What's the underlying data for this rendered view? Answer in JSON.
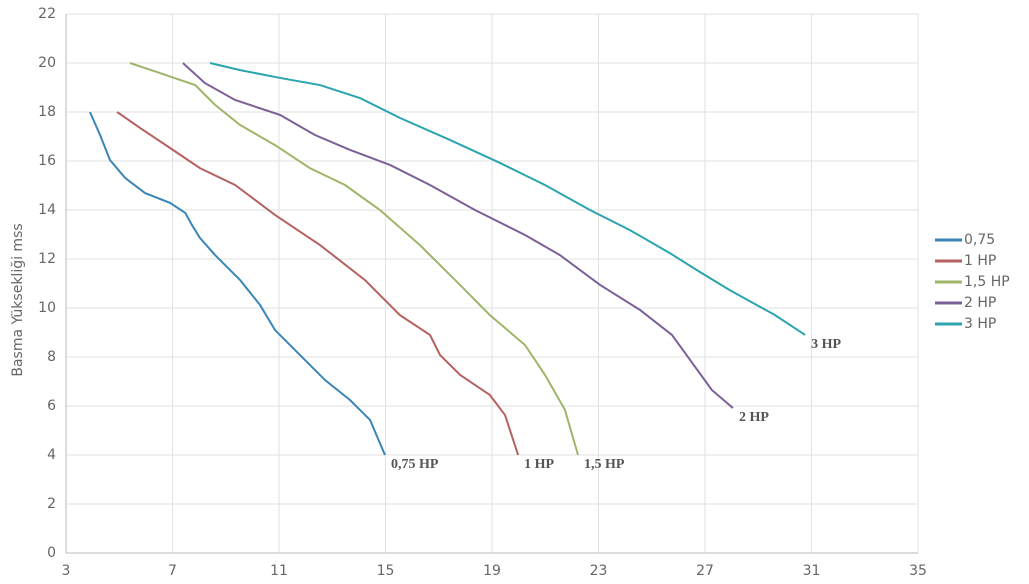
{
  "chart_data": {
    "type": "line",
    "y_label": "Basma Yüksekliği mss",
    "xlim": [
      3,
      35
    ],
    "xticks": [
      3,
      7,
      11,
      15,
      19,
      23,
      27,
      31,
      35
    ],
    "ylim": [
      0,
      22
    ],
    "yticks": [
      0,
      2,
      4,
      6,
      8,
      10,
      12,
      14,
      16,
      18,
      20,
      22
    ],
    "grid": true,
    "legend": "right",
    "series": [
      {
        "name": "0,75",
        "label": "0,75 HP",
        "color": "#3a86b6",
        "x": [
          3.9,
          4.28,
          4.65,
          5.22,
          5.97,
          6.91,
          7.48,
          7.73,
          8.03,
          8.6,
          9.54,
          10.29,
          10.85,
          11.79,
          12.73,
          13.67,
          14.42,
          14.98
        ],
        "values": [
          18,
          17.06,
          16.04,
          15.31,
          14.69,
          14.29,
          13.88,
          13.39,
          12.86,
          12.16,
          11.14,
          10.12,
          9.1,
          8.08,
          7.06,
          6.24,
          5.43,
          4
        ]
      },
      {
        "name": "1 HP",
        "label": "1 HP",
        "color": "#b5615f",
        "x": [
          4.92,
          5.78,
          6.91,
          8.03,
          9.35,
          10.85,
          12.54,
          14.23,
          15.54,
          16.67,
          17.05,
          17.8,
          18.92,
          19.49,
          19.98
        ],
        "values": [
          18,
          17.35,
          16.53,
          15.71,
          15.02,
          13.8,
          12.57,
          11.14,
          9.71,
          8.9,
          8.08,
          7.27,
          6.45,
          5.63,
          4
        ]
      },
      {
        "name": "1,5 HP",
        "label": "1,5 HP",
        "color": "#9eb56a",
        "x": [
          5.4,
          6.53,
          7.85,
          8.6,
          9.54,
          10.85,
          12.16,
          13.48,
          14.79,
          16.29,
          17.8,
          18.92,
          20.24,
          20.99,
          21.74,
          22.23
        ],
        "values": [
          20,
          19.59,
          19.1,
          18.29,
          17.47,
          16.65,
          15.71,
          15.02,
          14,
          12.57,
          10.94,
          9.71,
          8.49,
          7.27,
          5.84,
          4
        ]
      },
      {
        "name": "2 HP",
        "label": "2 HP",
        "color": "#7a6096",
        "x": [
          7.39,
          8.22,
          9.35,
          11.04,
          12.35,
          13.67,
          15.17,
          16.67,
          18.36,
          20.24,
          21.55,
          23.06,
          24.56,
          25.76,
          26.44,
          27.26,
          28.05
        ],
        "values": [
          20,
          19.18,
          18.49,
          17.88,
          17.06,
          16.45,
          15.84,
          15.02,
          14,
          12.98,
          12.16,
          10.94,
          9.92,
          8.9,
          7.88,
          6.65,
          5.92
        ]
      },
      {
        "name": "3 HP",
        "label": "3 HP",
        "color": "#2aa5b0",
        "x": [
          8.41,
          9.54,
          11.04,
          12.54,
          14.04,
          15.54,
          17.42,
          19.3,
          20.99,
          22.68,
          24.18,
          25.68,
          26.81,
          27.93,
          29.63,
          30.76
        ],
        "values": [
          20,
          19.71,
          19.39,
          19.1,
          18.57,
          17.76,
          16.86,
          15.92,
          15.02,
          14,
          13.18,
          12.24,
          11.47,
          10.73,
          9.71,
          8.9
        ]
      }
    ]
  }
}
